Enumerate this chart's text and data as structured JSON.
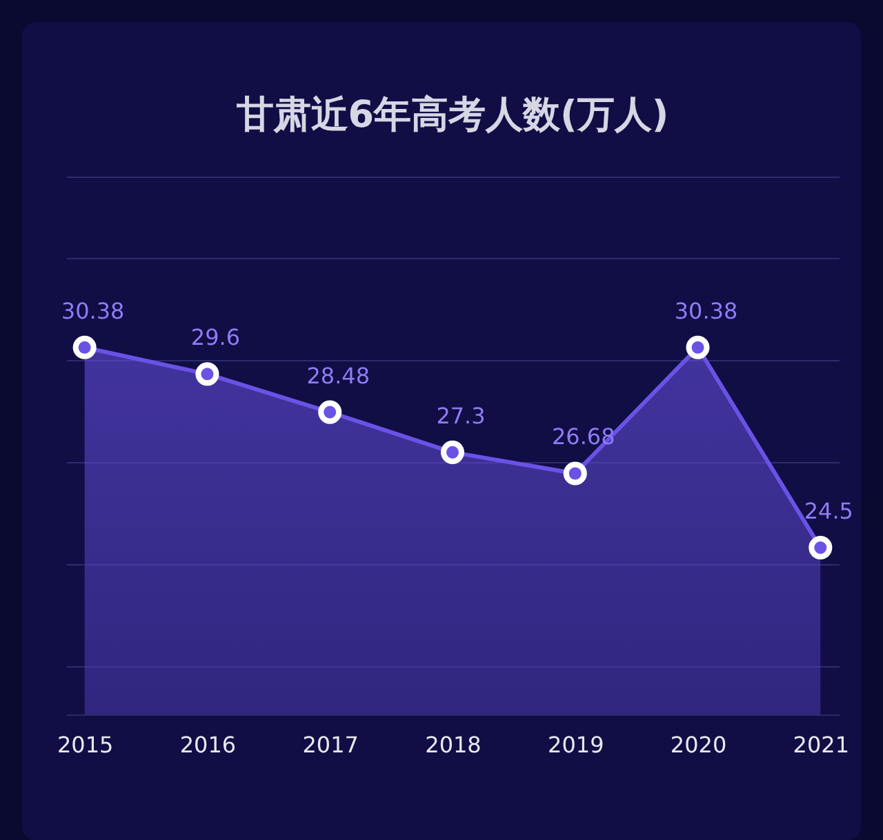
{
  "chart_data": {
    "type": "area",
    "title": "甘肃近6年高考人数(万人)",
    "categories": [
      "2015",
      "2016",
      "2017",
      "2018",
      "2019",
      "2020",
      "2021"
    ],
    "values": [
      30.38,
      29.6,
      28.48,
      27.3,
      26.68,
      30.38,
      24.5
    ],
    "color": "#6a52e6",
    "ylim": [
      19.6,
      35.4
    ],
    "yticks": [
      {
        "value": 21,
        "label": null
      },
      {
        "value": 24,
        "label": null
      },
      {
        "value": 27,
        "label": null
      },
      {
        "value": 30,
        "label": null
      },
      {
        "value": 33,
        "label": null
      },
      {
        "value": 35.4,
        "label": null
      }
    ],
    "tick_labels": "x",
    "grid": "y",
    "marker": "circle",
    "data_labels": true
  }
}
